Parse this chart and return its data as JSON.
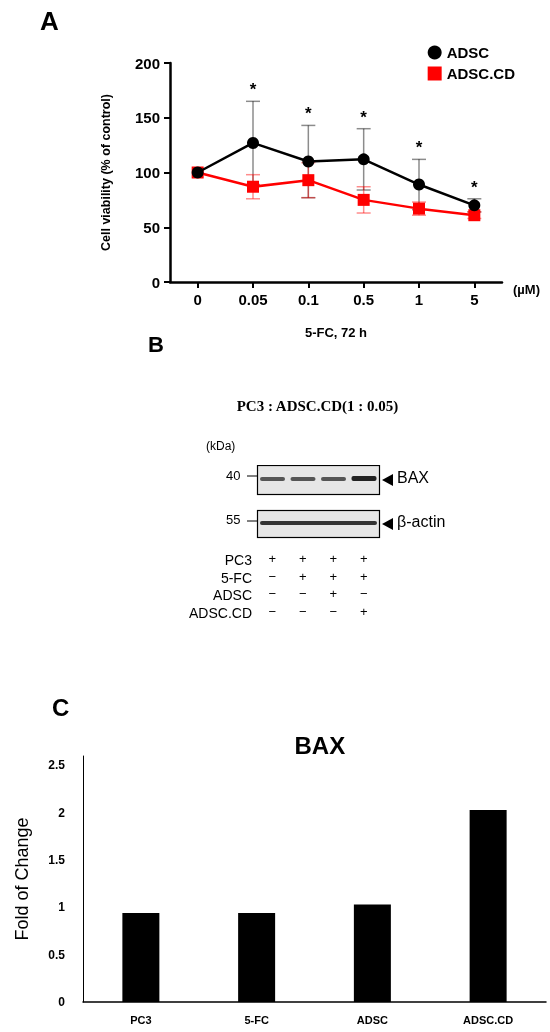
{
  "chart_data": [
    {
      "type": "line",
      "annotations": [
        "A",
        "(µM)",
        {
          "text": "*",
          "x": "0.05",
          "y": 165
        },
        {
          "text": "*",
          "x": "0.1",
          "y": 143
        },
        {
          "text": "*",
          "x": "0.5",
          "y": 140
        },
        {
          "text": "*",
          "x": "1",
          "y": 112
        },
        {
          "text": "*",
          "x": "5",
          "y": 76
        }
      ],
      "xlabel": "5-FC, 72 h",
      "ylabel": "Cell viability (% of control)",
      "categories": [
        "0",
        "0.05",
        "0.1",
        "0.5",
        "1",
        "5"
      ],
      "series": [
        {
          "name": "ADSC",
          "color": "#000000",
          "marker": "circle",
          "values": [
            100,
            127,
            110,
            112,
            89,
            70
          ],
          "errors": [
            null,
            38,
            33,
            28,
            23,
            6
          ]
        },
        {
          "name": "ADSC.CD",
          "color": "#ff0000",
          "marker": "square",
          "values": [
            100,
            87,
            93,
            75,
            67,
            61
          ],
          "errors": [
            null,
            11,
            16,
            12,
            6,
            3
          ]
        }
      ],
      "ylim": [
        0,
        200
      ],
      "yticks": [
        0,
        50,
        100,
        150,
        200
      ],
      "grid": false,
      "legend": "top right"
    },
    {
      "type": "other",
      "title": "PC3 : ADSC.CD(1 : 0.05)",
      "annotations": [
        "B",
        "(kDa)",
        "40",
        "55",
        "BAX",
        "β-actin"
      ],
      "y_categories": [
        "PC3",
        "5-FC",
        "ADSC",
        "ADSC.CD"
      ],
      "cell_labels": [
        [
          "+",
          "+",
          "+",
          "+"
        ],
        [
          "−",
          "+",
          "+",
          "+"
        ],
        [
          "−",
          "−",
          "+",
          "−"
        ],
        [
          "−",
          "−",
          "−",
          "+"
        ]
      ]
    },
    {
      "type": "bar",
      "title": "BAX",
      "annotations": [
        "C"
      ],
      "ylabel": "Fold of Change",
      "categories": [
        "PC3",
        "5-FC",
        "ADSC",
        "ADSC.CD"
      ],
      "series": [
        {
          "color": "#000000",
          "values": [
            0.94,
            0.94,
            1.03,
            2.03
          ]
        }
      ],
      "ylim": [
        0,
        2.6
      ],
      "yticks": [
        0,
        0.5,
        1,
        1.5,
        2,
        2.5
      ],
      "grid": false,
      "legend": false
    }
  ]
}
